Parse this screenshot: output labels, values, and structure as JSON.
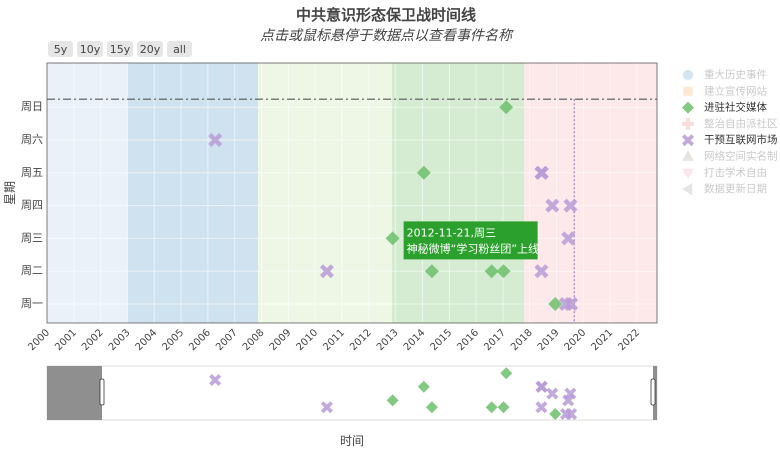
{
  "chart_data": {
    "type": "scatter",
    "title": "中共意识形态保卫战时间线",
    "subtitle": "点击或鼠标悬停于数据点以查看事件名称",
    "xlabel": "时间",
    "ylabel": "星期",
    "x_ticks": [
      "2000",
      "2001",
      "2002",
      "2003",
      "2004",
      "2005",
      "2006",
      "2007",
      "2008",
      "2009",
      "2010",
      "2011",
      "2012",
      "2013",
      "2014",
      "2015",
      "2016",
      "2017",
      "2018",
      "2019",
      "2020",
      "2021",
      "2022"
    ],
    "xlim": [
      "2000-01-01",
      "2022-10-01"
    ],
    "y_categories": [
      "周一",
      "周二",
      "周三",
      "周四",
      "周五",
      "周六",
      "周日"
    ],
    "range_buttons": [
      "5y",
      "10y",
      "15y",
      "20y",
      "all"
    ],
    "era_bands": [
      {
        "start": "2000-01-01",
        "end": "2002-12-31",
        "color": "#eaf1f9"
      },
      {
        "start": "2002-12-31",
        "end": "2007-11-15",
        "color": "#cfe2f0"
      },
      {
        "start": "2007-11-15",
        "end": "2012-11-10",
        "color": "#eef7e6"
      },
      {
        "start": "2012-11-10",
        "end": "2017-10-20",
        "color": "#d5ecd2"
      },
      {
        "start": "2017-10-20",
        "end": "2022-10-01",
        "color": "#fde8ea"
      }
    ],
    "reference_line_y": "周日",
    "reference_line_x": "2019-08-30",
    "series": [
      {
        "name": "重大历史事件",
        "marker": "circle",
        "color": "#9ec9e2",
        "points": []
      },
      {
        "name": "建立宣传网站",
        "marker": "square",
        "color": "#fccba3",
        "points": []
      },
      {
        "name": "进驻社交媒体",
        "marker": "diamond",
        "color": "#6cbf6c",
        "points": [
          {
            "x": "2017-02-15",
            "y": "周日"
          },
          {
            "x": "2014-01-20",
            "y": "周五"
          },
          {
            "x": "2012-11-21",
            "y": "周三"
          },
          {
            "x": "2014-05-10",
            "y": "周二"
          },
          {
            "x": "2016-08-01",
            "y": "周二"
          },
          {
            "x": "2017-01-10",
            "y": "周二"
          },
          {
            "x": "2018-12-15",
            "y": "周一"
          }
        ]
      },
      {
        "name": "整治自由派社区",
        "marker": "cross",
        "color": "#f5b5b5",
        "points": []
      },
      {
        "name": "干预互联网市场",
        "marker": "x",
        "color": "#b79bd6",
        "points": [
          {
            "x": "2006-04-10",
            "y": "周六"
          },
          {
            "x": "2010-06-10",
            "y": "周二"
          },
          {
            "x": "2018-06-10",
            "y": "周五"
          },
          {
            "x": "2018-06-15",
            "y": "周五"
          },
          {
            "x": "2018-11-05",
            "y": "周四"
          },
          {
            "x": "2019-07-10",
            "y": "周四"
          },
          {
            "x": "2019-06-10",
            "y": "周三"
          },
          {
            "x": "2018-06-10",
            "y": "周二"
          },
          {
            "x": "2019-05-10",
            "y": "周一"
          },
          {
            "x": "2019-07-20",
            "y": "周一"
          }
        ]
      },
      {
        "name": "网络空间实名制",
        "marker": "triangle-up",
        "color": "#c9c2bc",
        "points": []
      },
      {
        "name": "打击学术自由",
        "marker": "triangle-down",
        "color": "#f9c6d6",
        "points": []
      },
      {
        "name": "数据更新日期",
        "marker": "triangle-left",
        "color": "#c6c6c6",
        "points": []
      }
    ],
    "legend_position": "right",
    "hidden_series": [
      "重大历史事件",
      "建立宣传网站",
      "整治自由派社区",
      "网络空间实名制",
      "打击学术自由",
      "数据更新日期"
    ],
    "tooltip": {
      "x": "2012-11-21",
      "y": "周三",
      "line1": "2012-11-21,周三",
      "line2": "神秘微博“学习粉丝团”上线",
      "color": "#2ca02c"
    },
    "grid": true,
    "range_slider": true
  }
}
